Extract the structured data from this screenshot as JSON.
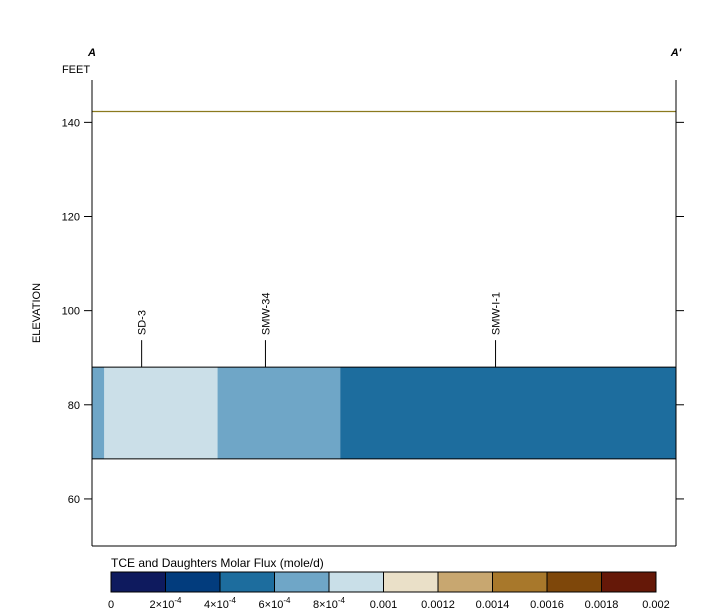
{
  "section": {
    "left_label": "A",
    "right_label": "A'",
    "units": "FEET",
    "ylabel": "ELEVATION"
  },
  "chart_data": {
    "type": "heatmap",
    "title": "",
    "xlabel": "",
    "ylabel": "ELEVATION",
    "ylim": [
      50,
      149
    ],
    "xlim": [
      0,
      1
    ],
    "grid": false,
    "yticks": [
      {
        "value": 60,
        "label": "60"
      },
      {
        "value": 80,
        "label": "80"
      },
      {
        "value": 100,
        "label": "100"
      },
      {
        "value": 120,
        "label": "120"
      },
      {
        "value": 140,
        "label": "140"
      }
    ],
    "ground_surface": {
      "elevation": 142.3,
      "color": "#8b7a1e"
    },
    "layer": {
      "top": 88,
      "bottom": 68.5,
      "segments": [
        {
          "x0": 0.0,
          "x1": 0.021,
          "value": 0.00065,
          "color": "#6fa6c7"
        },
        {
          "x0": 0.021,
          "x1": 0.215,
          "value": 0.0009,
          "color": "#cbdfe8"
        },
        {
          "x0": 0.215,
          "x1": 0.425,
          "value": 0.00065,
          "color": "#6fa6c7"
        },
        {
          "x0": 0.425,
          "x1": 1.0,
          "value": 0.0005,
          "color": "#1d6d9e"
        }
      ]
    },
    "wells": [
      {
        "name": "SD-3",
        "x": 0.085
      },
      {
        "name": "SMW-34",
        "x": 0.297
      },
      {
        "name": "SMW-I-1",
        "x": 0.691
      }
    ],
    "legend": {
      "title": "TCE and Daughters Molar Flux (mole/d)",
      "colors": [
        "#0e1a5e",
        "#023c7d",
        "#1d6d9e",
        "#6fa6c7",
        "#c9dfe8",
        "#eae0c8",
        "#c8a770",
        "#a8782b",
        "#7e470a",
        "#651808"
      ],
      "ticks": [
        {
          "value": 0,
          "label": "0"
        },
        {
          "value": 0.0002,
          "label": "2×10",
          "exp": "-4"
        },
        {
          "value": 0.0004,
          "label": "4×10",
          "exp": "-4"
        },
        {
          "value": 0.0006,
          "label": "6×10",
          "exp": "-4"
        },
        {
          "value": 0.0008,
          "label": "8×10",
          "exp": "-4"
        },
        {
          "value": 0.001,
          "label": "0.001"
        },
        {
          "value": 0.0012,
          "label": "0.0012"
        },
        {
          "value": 0.0014,
          "label": "0.0014"
        },
        {
          "value": 0.0016,
          "label": "0.0016"
        },
        {
          "value": 0.0018,
          "label": "0.0018"
        },
        {
          "value": 0.002,
          "label": "0.002"
        }
      ],
      "range": [
        0,
        0.002
      ]
    }
  }
}
